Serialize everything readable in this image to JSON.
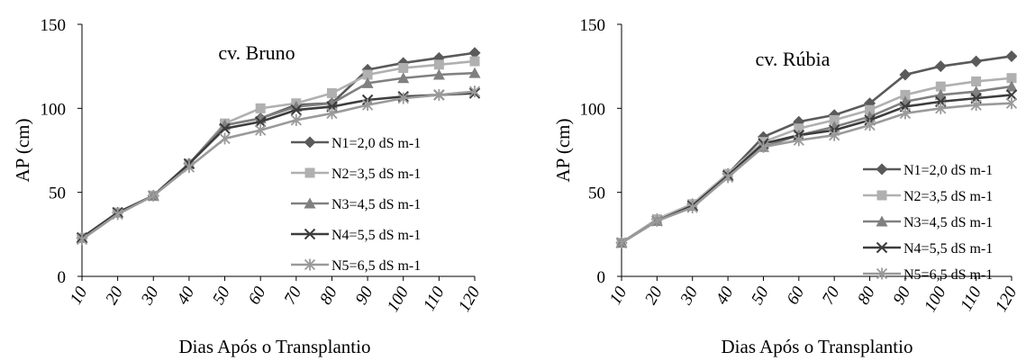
{
  "chart_data": [
    {
      "type": "line",
      "title": "cv. Bruno",
      "xlabel": "Dias Após o Transplantio",
      "ylabel": "AP (cm)",
      "ylim": [
        0,
        150
      ],
      "yticks": [
        "0",
        "50",
        "100",
        "150"
      ],
      "categories": [
        "10",
        "20",
        "30",
        "40",
        "50",
        "60",
        "70",
        "80",
        "90",
        "100",
        "110",
        "120"
      ],
      "legend_position": "right",
      "series": [
        {
          "name": "N1=2,0 dS m-1",
          "marker": "diamond",
          "color": "#5a5a5a",
          "values": [
            23,
            38,
            48,
            67,
            90,
            94,
            102,
            103,
            123,
            127,
            130,
            133
          ]
        },
        {
          "name": "N2=3,5 dS m-1",
          "marker": "square",
          "color": "#b0b0b0",
          "values": [
            23,
            38,
            48,
            67,
            91,
            100,
            103,
            109,
            120,
            124,
            126,
            128
          ]
        },
        {
          "name": "N3=4,5 dS m-1",
          "marker": "triangle",
          "color": "#808080",
          "values": [
            23,
            38,
            48,
            67,
            90,
            94,
            101,
            103,
            115,
            118,
            120,
            121
          ]
        },
        {
          "name": "N4=5,5 dS m-1",
          "marker": "x",
          "color": "#3c3c3c",
          "values": [
            23,
            38,
            48,
            67,
            88,
            92,
            99,
            101,
            105,
            107,
            108,
            109
          ]
        },
        {
          "name": "N5=6,5 dS m-1",
          "marker": "star",
          "color": "#9a9a9a",
          "values": [
            22,
            37,
            48,
            65,
            82,
            87,
            93,
            97,
            102,
            106,
            108,
            110
          ]
        }
      ]
    },
    {
      "type": "line",
      "title": "cv. Rúbia",
      "xlabel": "Dias Após o Transplantio",
      "ylabel": "AP (cm)",
      "ylim": [
        0,
        150
      ],
      "yticks": [
        "0",
        "50",
        "100",
        "150"
      ],
      "categories": [
        "10",
        "20",
        "30",
        "40",
        "50",
        "60",
        "70",
        "80",
        "90",
        "100",
        "110",
        "120"
      ],
      "legend_position": "right",
      "series": [
        {
          "name": "N1=2,0 dS m-1",
          "marker": "diamond",
          "color": "#5a5a5a",
          "values": [
            20,
            34,
            43,
            61,
            83,
            92,
            96,
            103,
            120,
            125,
            128,
            131
          ]
        },
        {
          "name": "N2=3,5 dS m-1",
          "marker": "square",
          "color": "#b0b0b0",
          "values": [
            20,
            34,
            43,
            61,
            80,
            88,
            93,
            99,
            108,
            113,
            116,
            118
          ]
        },
        {
          "name": "N3=4,5 dS m-1",
          "marker": "triangle",
          "color": "#808080",
          "values": [
            20,
            33,
            42,
            60,
            77,
            84,
            89,
            95,
            104,
            108,
            110,
            113
          ]
        },
        {
          "name": "N4=5,5 dS m-1",
          "marker": "x",
          "color": "#3c3c3c",
          "values": [
            20,
            33,
            42,
            60,
            79,
            84,
            87,
            93,
            101,
            104,
            106,
            108
          ]
        },
        {
          "name": "N5=6,5 dS m-1",
          "marker": "star",
          "color": "#9a9a9a",
          "values": [
            20,
            33,
            41,
            59,
            77,
            81,
            84,
            90,
            97,
            100,
            102,
            103
          ]
        }
      ]
    }
  ]
}
